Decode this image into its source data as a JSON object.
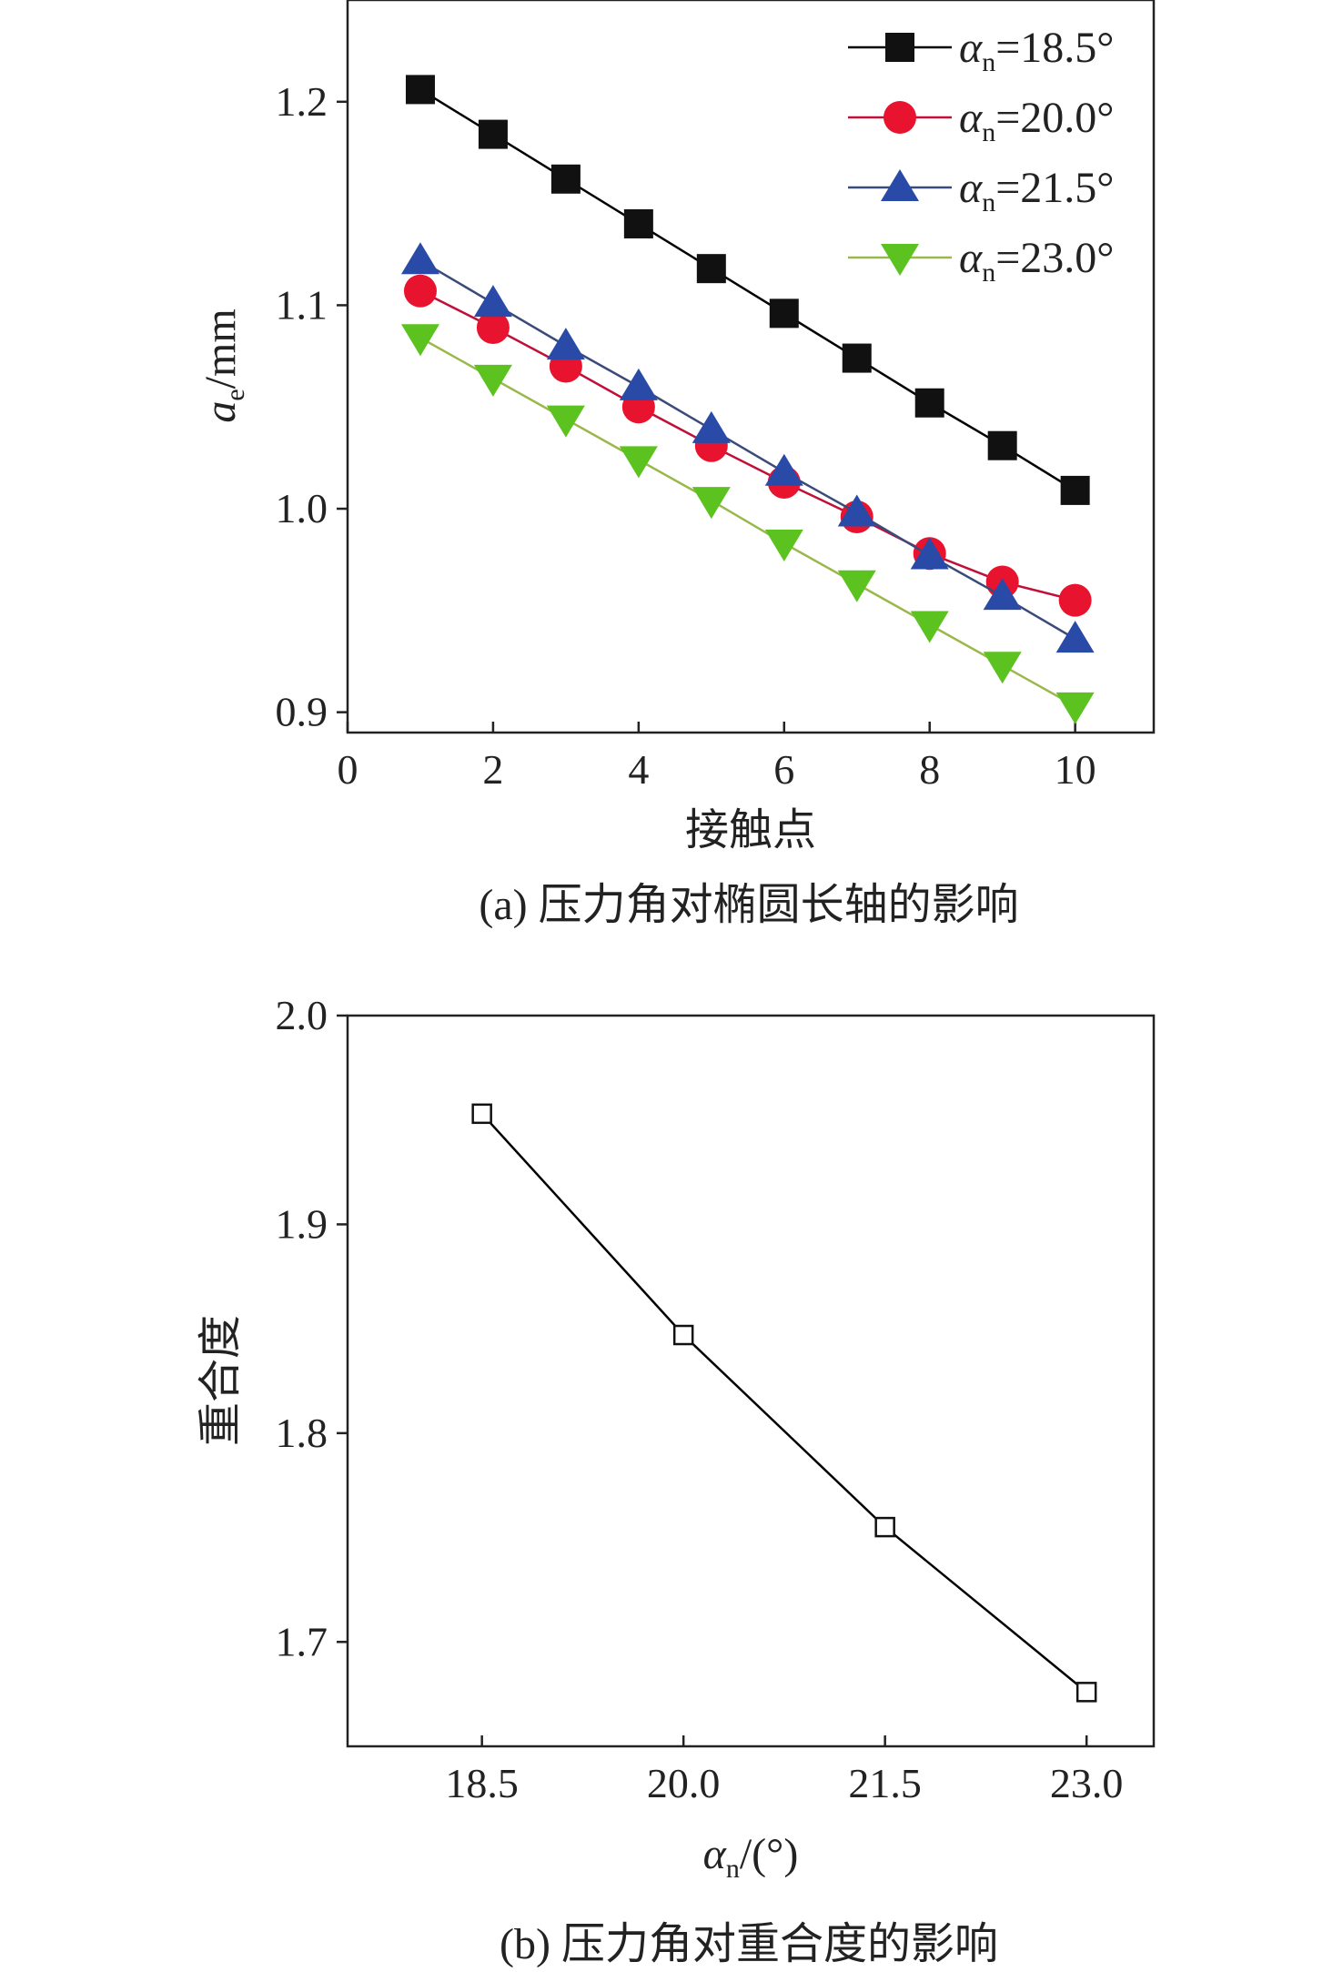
{
  "chart_data": [
    {
      "id": "a",
      "type": "line",
      "caption": "(a) 压力角对椭圆长轴的影响",
      "xlabel": "接触点",
      "ylabel_main": "a",
      "ylabel_sub": "e",
      "ylabel_unit": "/mm",
      "xlim": [
        0,
        11.08
      ],
      "ylim": [
        0.89,
        1.25
      ],
      "xticks": [
        0,
        2,
        4,
        6,
        8,
        10
      ],
      "xtick_labels": [
        "0",
        "2",
        "4",
        "6",
        "8",
        "10"
      ],
      "yticks": [
        0.9,
        1.0,
        1.1,
        1.2
      ],
      "ytick_labels": [
        "0.9",
        "1.0",
        "1.1",
        "1.2"
      ],
      "legend_position": "top-right",
      "x": [
        1,
        2,
        3,
        4,
        5,
        6,
        7,
        8,
        9,
        10
      ],
      "series": [
        {
          "name": "αn=18.5°",
          "name_main": "α",
          "name_sub": "n",
          "name_rest": "=18.5°",
          "marker": "square",
          "color": "#111111",
          "line_color": "#000000",
          "values": [
            1.206,
            1.184,
            1.162,
            1.14,
            1.118,
            1.096,
            1.074,
            1.052,
            1.031,
            1.009
          ]
        },
        {
          "name": "αn=20.0°",
          "name_main": "α",
          "name_sub": "n",
          "name_rest": "=20.0°",
          "marker": "circle",
          "color": "#e8132e",
          "line_color": "#c0103a",
          "values": [
            1.107,
            1.089,
            1.07,
            1.05,
            1.031,
            1.013,
            0.996,
            0.978,
            0.964,
            0.955
          ]
        },
        {
          "name": "αn=21.5°",
          "name_main": "α",
          "name_sub": "n",
          "name_rest": "=21.5°",
          "marker": "triangle-up",
          "color": "#2a4aa8",
          "line_color": "#3a4a7a",
          "values": [
            1.122,
            1.101,
            1.08,
            1.06,
            1.039,
            1.018,
            0.998,
            0.977,
            0.957,
            0.936
          ]
        },
        {
          "name": "αn=23.0°",
          "name_main": "α",
          "name_sub": "n",
          "name_rest": "=23.0°",
          "marker": "triangle-down",
          "color": "#5cc21f",
          "line_color": "#9ab84a",
          "values": [
            1.084,
            1.064,
            1.044,
            1.024,
            1.004,
            0.983,
            0.963,
            0.943,
            0.923,
            0.903
          ]
        }
      ]
    },
    {
      "id": "b",
      "type": "line",
      "caption": "(b) 压力角对重合度的影响",
      "xlabel_main": "α",
      "xlabel_sub": "n",
      "xlabel_unit": "/(°)",
      "ylabel": "重合度",
      "xlim": [
        17.5,
        23.5
      ],
      "ylim": [
        1.65,
        2.0
      ],
      "xticks": [
        18.5,
        20.0,
        21.5,
        23.0
      ],
      "xtick_labels": [
        "18.5",
        "20.0",
        "21.5",
        "23.0"
      ],
      "yticks": [
        1.7,
        1.8,
        1.9,
        2.0
      ],
      "ytick_labels": [
        "1.7",
        "1.8",
        "1.9",
        "2.0"
      ],
      "x": [
        18.5,
        20.0,
        21.5,
        23.0
      ],
      "series": [
        {
          "marker": "square-open",
          "color": "#111111",
          "line_color": "#000000",
          "values": [
            1.953,
            1.847,
            1.755,
            1.676
          ]
        }
      ]
    }
  ]
}
